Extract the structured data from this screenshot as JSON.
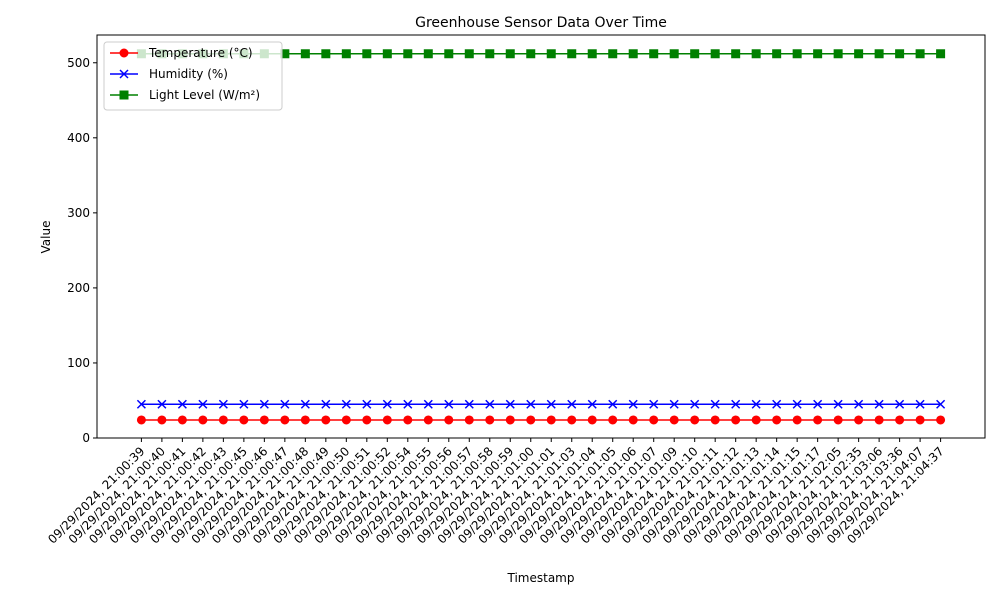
{
  "chart_data": {
    "type": "line",
    "title": "Greenhouse Sensor Data Over Time",
    "xlabel": "Timestamp",
    "ylabel": "Value",
    "ylim": [
      0,
      537
    ],
    "yticks": [
      0,
      100,
      200,
      300,
      400,
      500
    ],
    "grid": false,
    "legend_position": "top-left",
    "categories": [
      "09/29/2024, 21:00:39",
      "09/29/2024, 21:00:40",
      "09/29/2024, 21:00:41",
      "09/29/2024, 21:00:42",
      "09/29/2024, 21:00:43",
      "09/29/2024, 21:00:45",
      "09/29/2024, 21:00:46",
      "09/29/2024, 21:00:47",
      "09/29/2024, 21:00:48",
      "09/29/2024, 21:00:49",
      "09/29/2024, 21:00:50",
      "09/29/2024, 21:00:51",
      "09/29/2024, 21:00:52",
      "09/29/2024, 21:00:54",
      "09/29/2024, 21:00:55",
      "09/29/2024, 21:00:56",
      "09/29/2024, 21:00:57",
      "09/29/2024, 21:00:58",
      "09/29/2024, 21:00:59",
      "09/29/2024, 21:01:00",
      "09/29/2024, 21:01:01",
      "09/29/2024, 21:01:03",
      "09/29/2024, 21:01:04",
      "09/29/2024, 21:01:05",
      "09/29/2024, 21:01:06",
      "09/29/2024, 21:01:07",
      "09/29/2024, 21:01:09",
      "09/29/2024, 21:01:10",
      "09/29/2024, 21:01:11",
      "09/29/2024, 21:01:12",
      "09/29/2024, 21:01:13",
      "09/29/2024, 21:01:14",
      "09/29/2024, 21:01:15",
      "09/29/2024, 21:01:17",
      "09/29/2024, 21:02:05",
      "09/29/2024, 21:02:35",
      "09/29/2024, 21:03:06",
      "09/29/2024, 21:03:36",
      "09/29/2024, 21:04:07",
      "09/29/2024, 21:04:37"
    ],
    "series": [
      {
        "name": "Temperature (°C)",
        "color": "#ff0000",
        "marker": "circle",
        "values": [
          24,
          24,
          24,
          24,
          24,
          24,
          24,
          24,
          24,
          24,
          24,
          24,
          24,
          24,
          24,
          24,
          24,
          24,
          24,
          24,
          24,
          24,
          24,
          24,
          24,
          24,
          24,
          24,
          24,
          24,
          24,
          24,
          24,
          24,
          24,
          24,
          24,
          24,
          24,
          24
        ]
      },
      {
        "name": "Humidity (%)",
        "color": "#0000ff",
        "marker": "x",
        "values": [
          45,
          45,
          45,
          45,
          45,
          45,
          45,
          45,
          45,
          45,
          45,
          45,
          45,
          45,
          45,
          45,
          45,
          45,
          45,
          45,
          45,
          45,
          45,
          45,
          45,
          45,
          45,
          45,
          45,
          45,
          45,
          45,
          45,
          45,
          45,
          45,
          45,
          45,
          45,
          45
        ]
      },
      {
        "name": "Light Level (W/m²)",
        "color": "#008000",
        "marker": "square",
        "values": [
          512,
          512,
          512,
          512,
          512,
          512,
          512,
          512,
          512,
          512,
          512,
          512,
          512,
          512,
          512,
          512,
          512,
          512,
          512,
          512,
          512,
          512,
          512,
          512,
          512,
          512,
          512,
          512,
          512,
          512,
          512,
          512,
          512,
          512,
          512,
          512,
          512,
          512,
          512,
          512
        ]
      }
    ]
  }
}
